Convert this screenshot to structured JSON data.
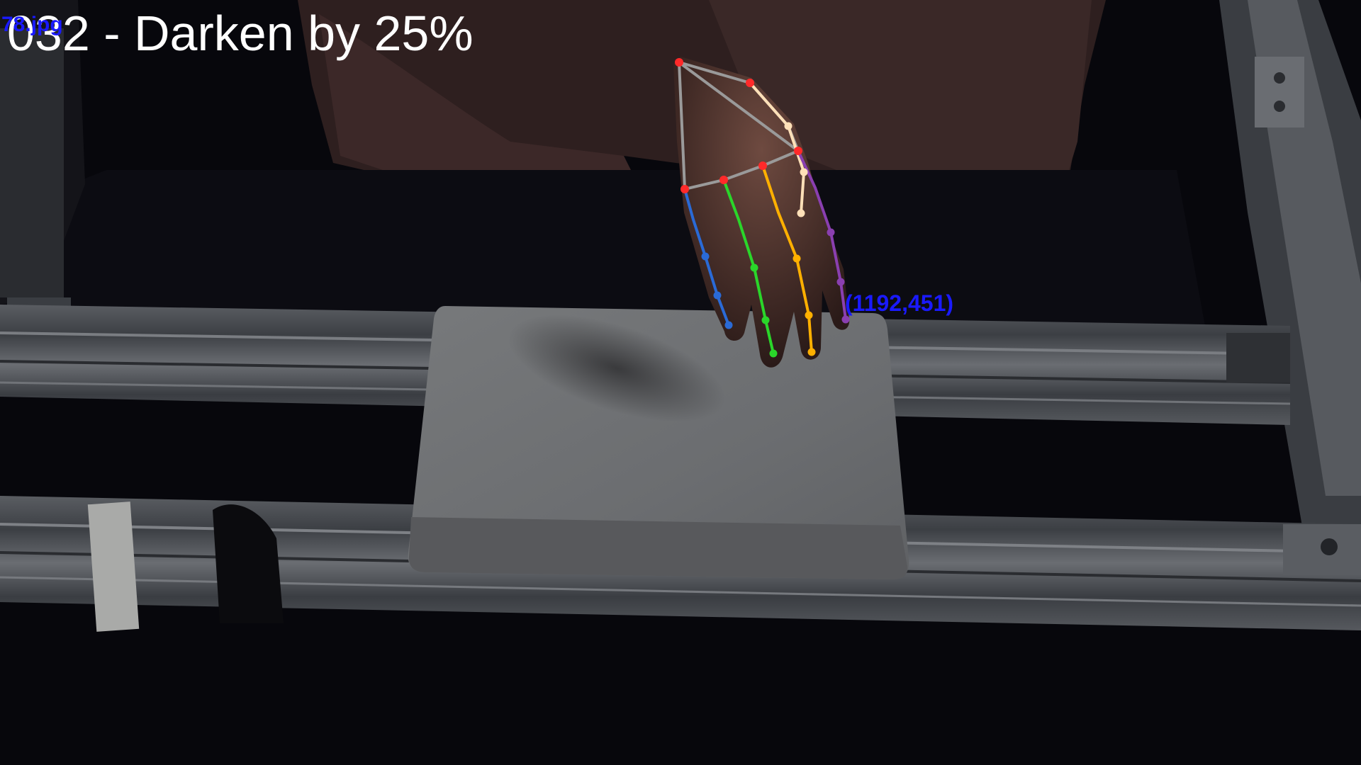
{
  "overlay": {
    "title": "032 - Darken by 25%",
    "filename": "78.jpg",
    "fingertip_coordinate": "(1192,451)"
  },
  "hand_skeleton": {
    "colors": {
      "joint_red": "#ff2a2a",
      "palm_lines": "#9a9a9a",
      "thumb": "#ffe0b8",
      "index": "#8a3fb0",
      "middle": "#ffb000",
      "ring": "#2ad62a",
      "pinky": "#2a6ad6"
    }
  }
}
